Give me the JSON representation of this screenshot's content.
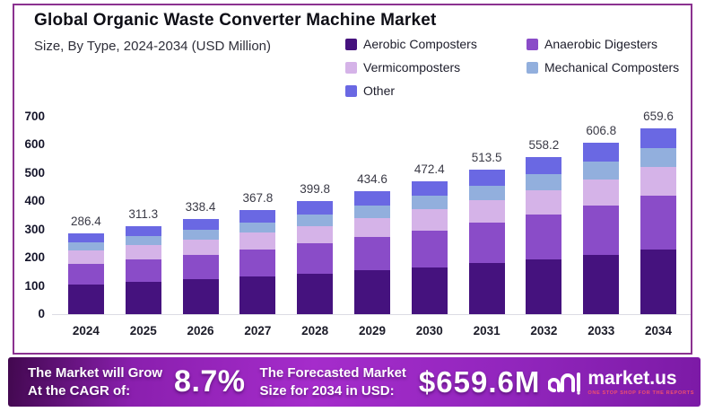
{
  "header": {
    "title": "Global Organic Waste Converter Machine Market",
    "subtitle": "Size, By Type, 2024-2034 (USD Million)"
  },
  "chart_data": {
    "type": "bar",
    "stacked": true,
    "title": "Global Organic Waste Converter Machine Market",
    "subtitle": "Size, By Type, 2024-2034 (USD Million)",
    "categories": [
      "2024",
      "2025",
      "2026",
      "2027",
      "2028",
      "2029",
      "2030",
      "2031",
      "2032",
      "2033",
      "2034"
    ],
    "series": [
      {
        "name": "Aerobic Composters",
        "color": "#45127e",
        "values": [
          106.4,
          114.5,
          123.5,
          133.0,
          143.5,
          155.0,
          167.0,
          180.5,
          195.0,
          211.0,
          229.0
        ]
      },
      {
        "name": "Anaerobic Digesters",
        "color": "#8a4cc8",
        "values": [
          72.0,
          79.5,
          87.5,
          96.5,
          106.5,
          117.5,
          129.5,
          143.0,
          157.5,
          173.5,
          191.0
        ]
      },
      {
        "name": "Vermicomposters",
        "color": "#d5b3e8",
        "values": [
          47.0,
          50.5,
          54.5,
          58.8,
          63.3,
          68.6,
          74.4,
          80.5,
          87.2,
          94.3,
          101.6
        ]
      },
      {
        "name": "Mechanical Composters",
        "color": "#92afdd",
        "values": [
          28.0,
          30.8,
          33.9,
          37.5,
          41.5,
          44.5,
          48.5,
          52.5,
          57.0,
          61.5,
          66.5
        ]
      },
      {
        "name": "Other",
        "color": "#6a68e3",
        "values": [
          33.0,
          36.0,
          39.0,
          42.0,
          45.0,
          49.0,
          53.0,
          57.0,
          61.5,
          66.5,
          71.5
        ]
      }
    ],
    "totals": [
      "286.4",
      "311.3",
      "338.4",
      "367.8",
      "399.8",
      "434.6",
      "472.4",
      "513.5",
      "558.2",
      "606.8",
      "659.6"
    ],
    "ylim": [
      0,
      700
    ],
    "yticks": [
      0,
      100,
      200,
      300,
      400,
      500,
      600,
      700
    ],
    "grid": false,
    "legend_position": "top-right"
  },
  "footer": {
    "cagr_label_line1": "The Market will Grow",
    "cagr_label_line2": "At the CAGR of:",
    "cagr_value": "8.7%",
    "forecast_label_line1": "The Forecasted Market",
    "forecast_label_line2": "Size for 2034 in USD:",
    "forecast_value": "$659.6M",
    "brand_name": "market.us",
    "brand_tagline": "ONE STOP SHOP FOR THE REPORTS"
  },
  "colors": {
    "frame_border": "#8b3290",
    "banner_start": "#42084f",
    "banner_mid": "#a52ccb",
    "banner_end": "#7c1aa6",
    "tagline": "#f0506e",
    "baseline": "#dcdce4"
  }
}
